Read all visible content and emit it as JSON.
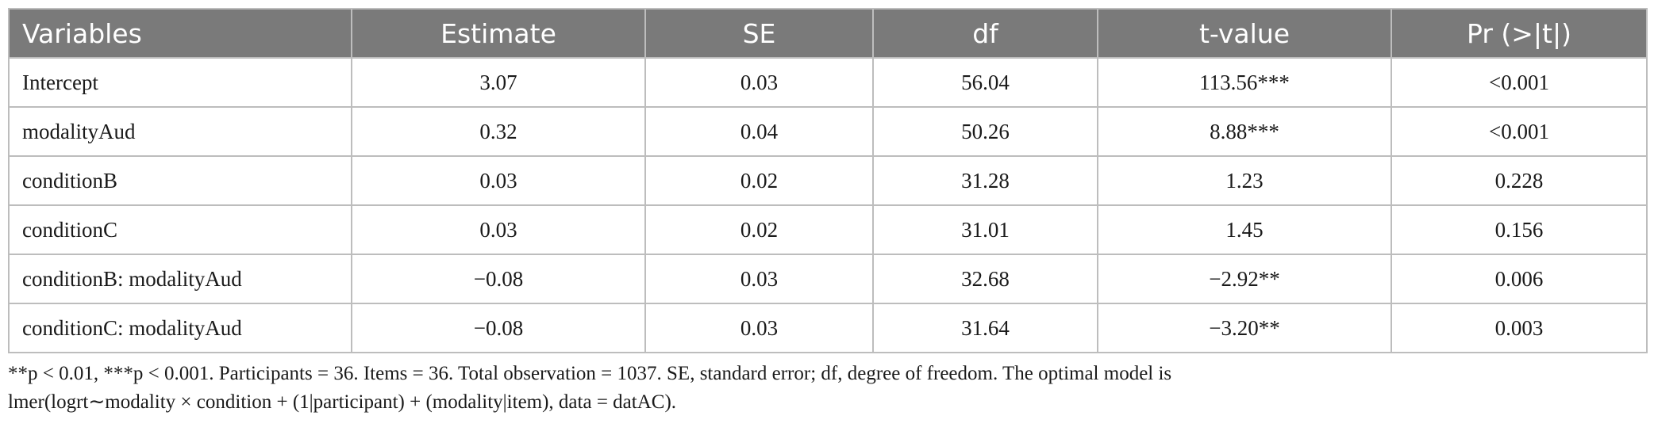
{
  "table": {
    "headers": [
      "Variables",
      "Estimate",
      "SE",
      "df",
      "t-value",
      "Pr (>|t|)"
    ],
    "rows": [
      [
        "Intercept",
        "3.07",
        "0.03",
        "56.04",
        "113.56***",
        "<0.001"
      ],
      [
        "modalityAud",
        "0.32",
        "0.04",
        "50.26",
        "8.88***",
        "<0.001"
      ],
      [
        "conditionB",
        "0.03",
        "0.02",
        "31.28",
        "1.23",
        "0.228"
      ],
      [
        "conditionC",
        "0.03",
        "0.02",
        "31.01",
        "1.45",
        "0.156"
      ],
      [
        "conditionB: modalityAud",
        "−0.08",
        "0.03",
        "32.68",
        "−2.92**",
        "0.006"
      ],
      [
        "conditionC: modalityAud",
        "−0.08",
        "0.03",
        "31.64",
        "−3.20**",
        "0.003"
      ]
    ]
  },
  "footnote": {
    "line1": "**p < 0.01, ***p < 0.001. Participants = 36. Items = 36. Total observation = 1037. SE, standard error; df, degree of freedom. The optimal model is",
    "line2": "lmer(logrt∼modality × condition + (1|participant) + (modality|item), data = datAC)."
  },
  "colors": {
    "header_bg": "#7a7a7a",
    "header_text": "#ffffff",
    "grid": "#bdbdbd"
  }
}
